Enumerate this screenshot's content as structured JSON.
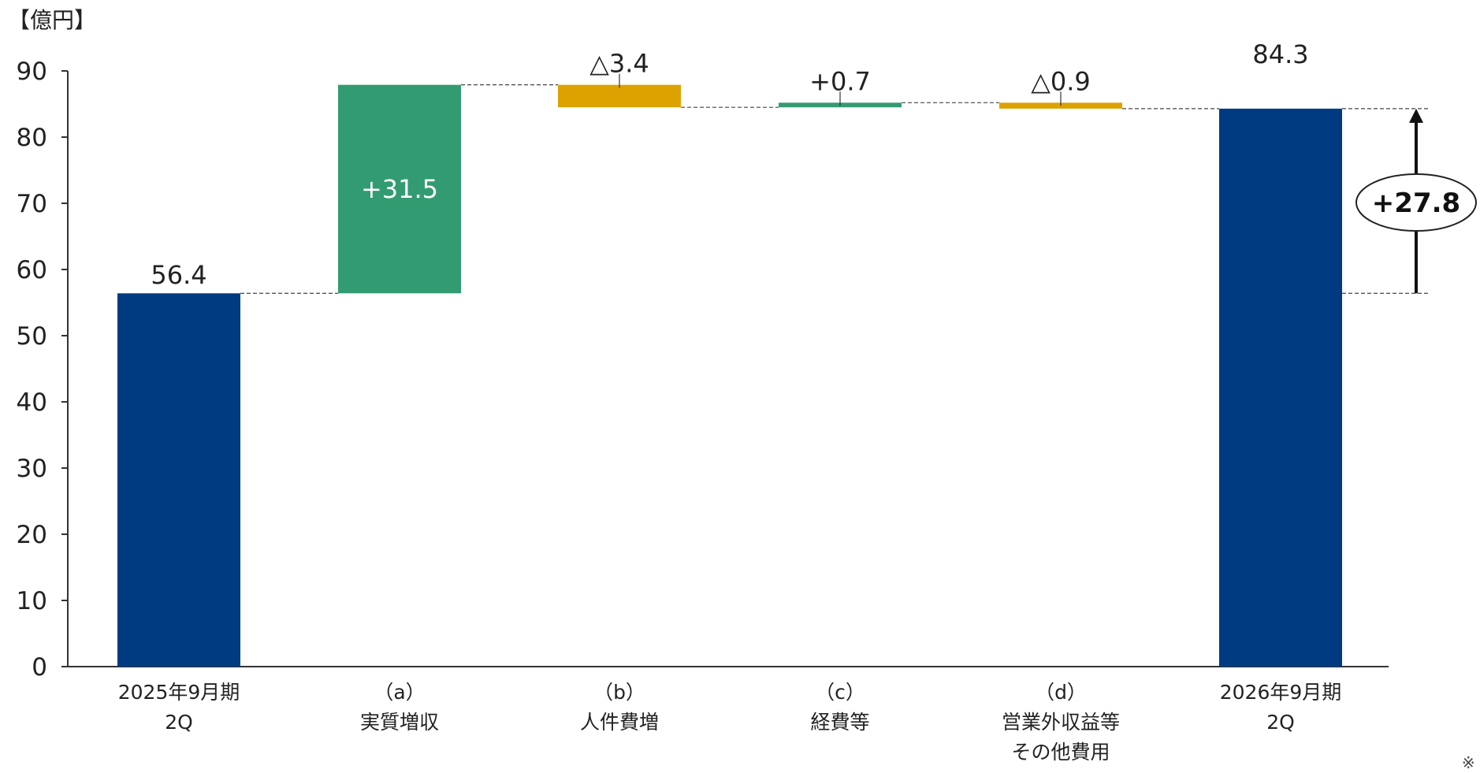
{
  "chart_data": {
    "type": "bar",
    "subtype": "waterfall",
    "unit_label": "【億円】",
    "ylim": [
      0,
      90
    ],
    "yticks": [
      0,
      10,
      20,
      30,
      40,
      50,
      60,
      70,
      80,
      90
    ],
    "grid": false,
    "categories": [
      {
        "line1": "2025年9月期",
        "line2": "2Q",
        "line3": ""
      },
      {
        "line1": "（a）",
        "line2": "実質増収",
        "line3": ""
      },
      {
        "line1": "（b）",
        "line2": "人件費増",
        "line3": ""
      },
      {
        "line1": "（c）",
        "line2": "経費等",
        "line3": ""
      },
      {
        "line1": "（d）",
        "line2": "営業外収益等",
        "line3": "その他費用"
      },
      {
        "line1": "2026年9月期",
        "line2": "2Q",
        "line3": ""
      }
    ],
    "bars": [
      {
        "kind": "total",
        "start": 0,
        "end": 56.4,
        "label": "56.4",
        "label_pos": "above",
        "color": "#003b82"
      },
      {
        "kind": "increase",
        "start": 56.4,
        "end": 87.9,
        "label": "+31.5",
        "label_pos": "inside",
        "color": "#339b72"
      },
      {
        "kind": "decrease",
        "start": 87.9,
        "end": 84.5,
        "label": "△3.4",
        "label_pos": "above",
        "color": "#dca200"
      },
      {
        "kind": "increase",
        "start": 84.5,
        "end": 85.2,
        "label": "+0.7",
        "label_pos": "above",
        "color": "#339b72"
      },
      {
        "kind": "decrease",
        "start": 85.2,
        "end": 84.3,
        "label": "△0.9",
        "label_pos": "above",
        "color": "#dca200"
      },
      {
        "kind": "total",
        "start": 0,
        "end": 84.3,
        "label": "84.3",
        "label_pos": "above",
        "color": "#003b82"
      }
    ],
    "difference": {
      "from": 56.4,
      "to": 84.3,
      "label": "+27.8"
    },
    "footnote": "※ 計数は"
  }
}
